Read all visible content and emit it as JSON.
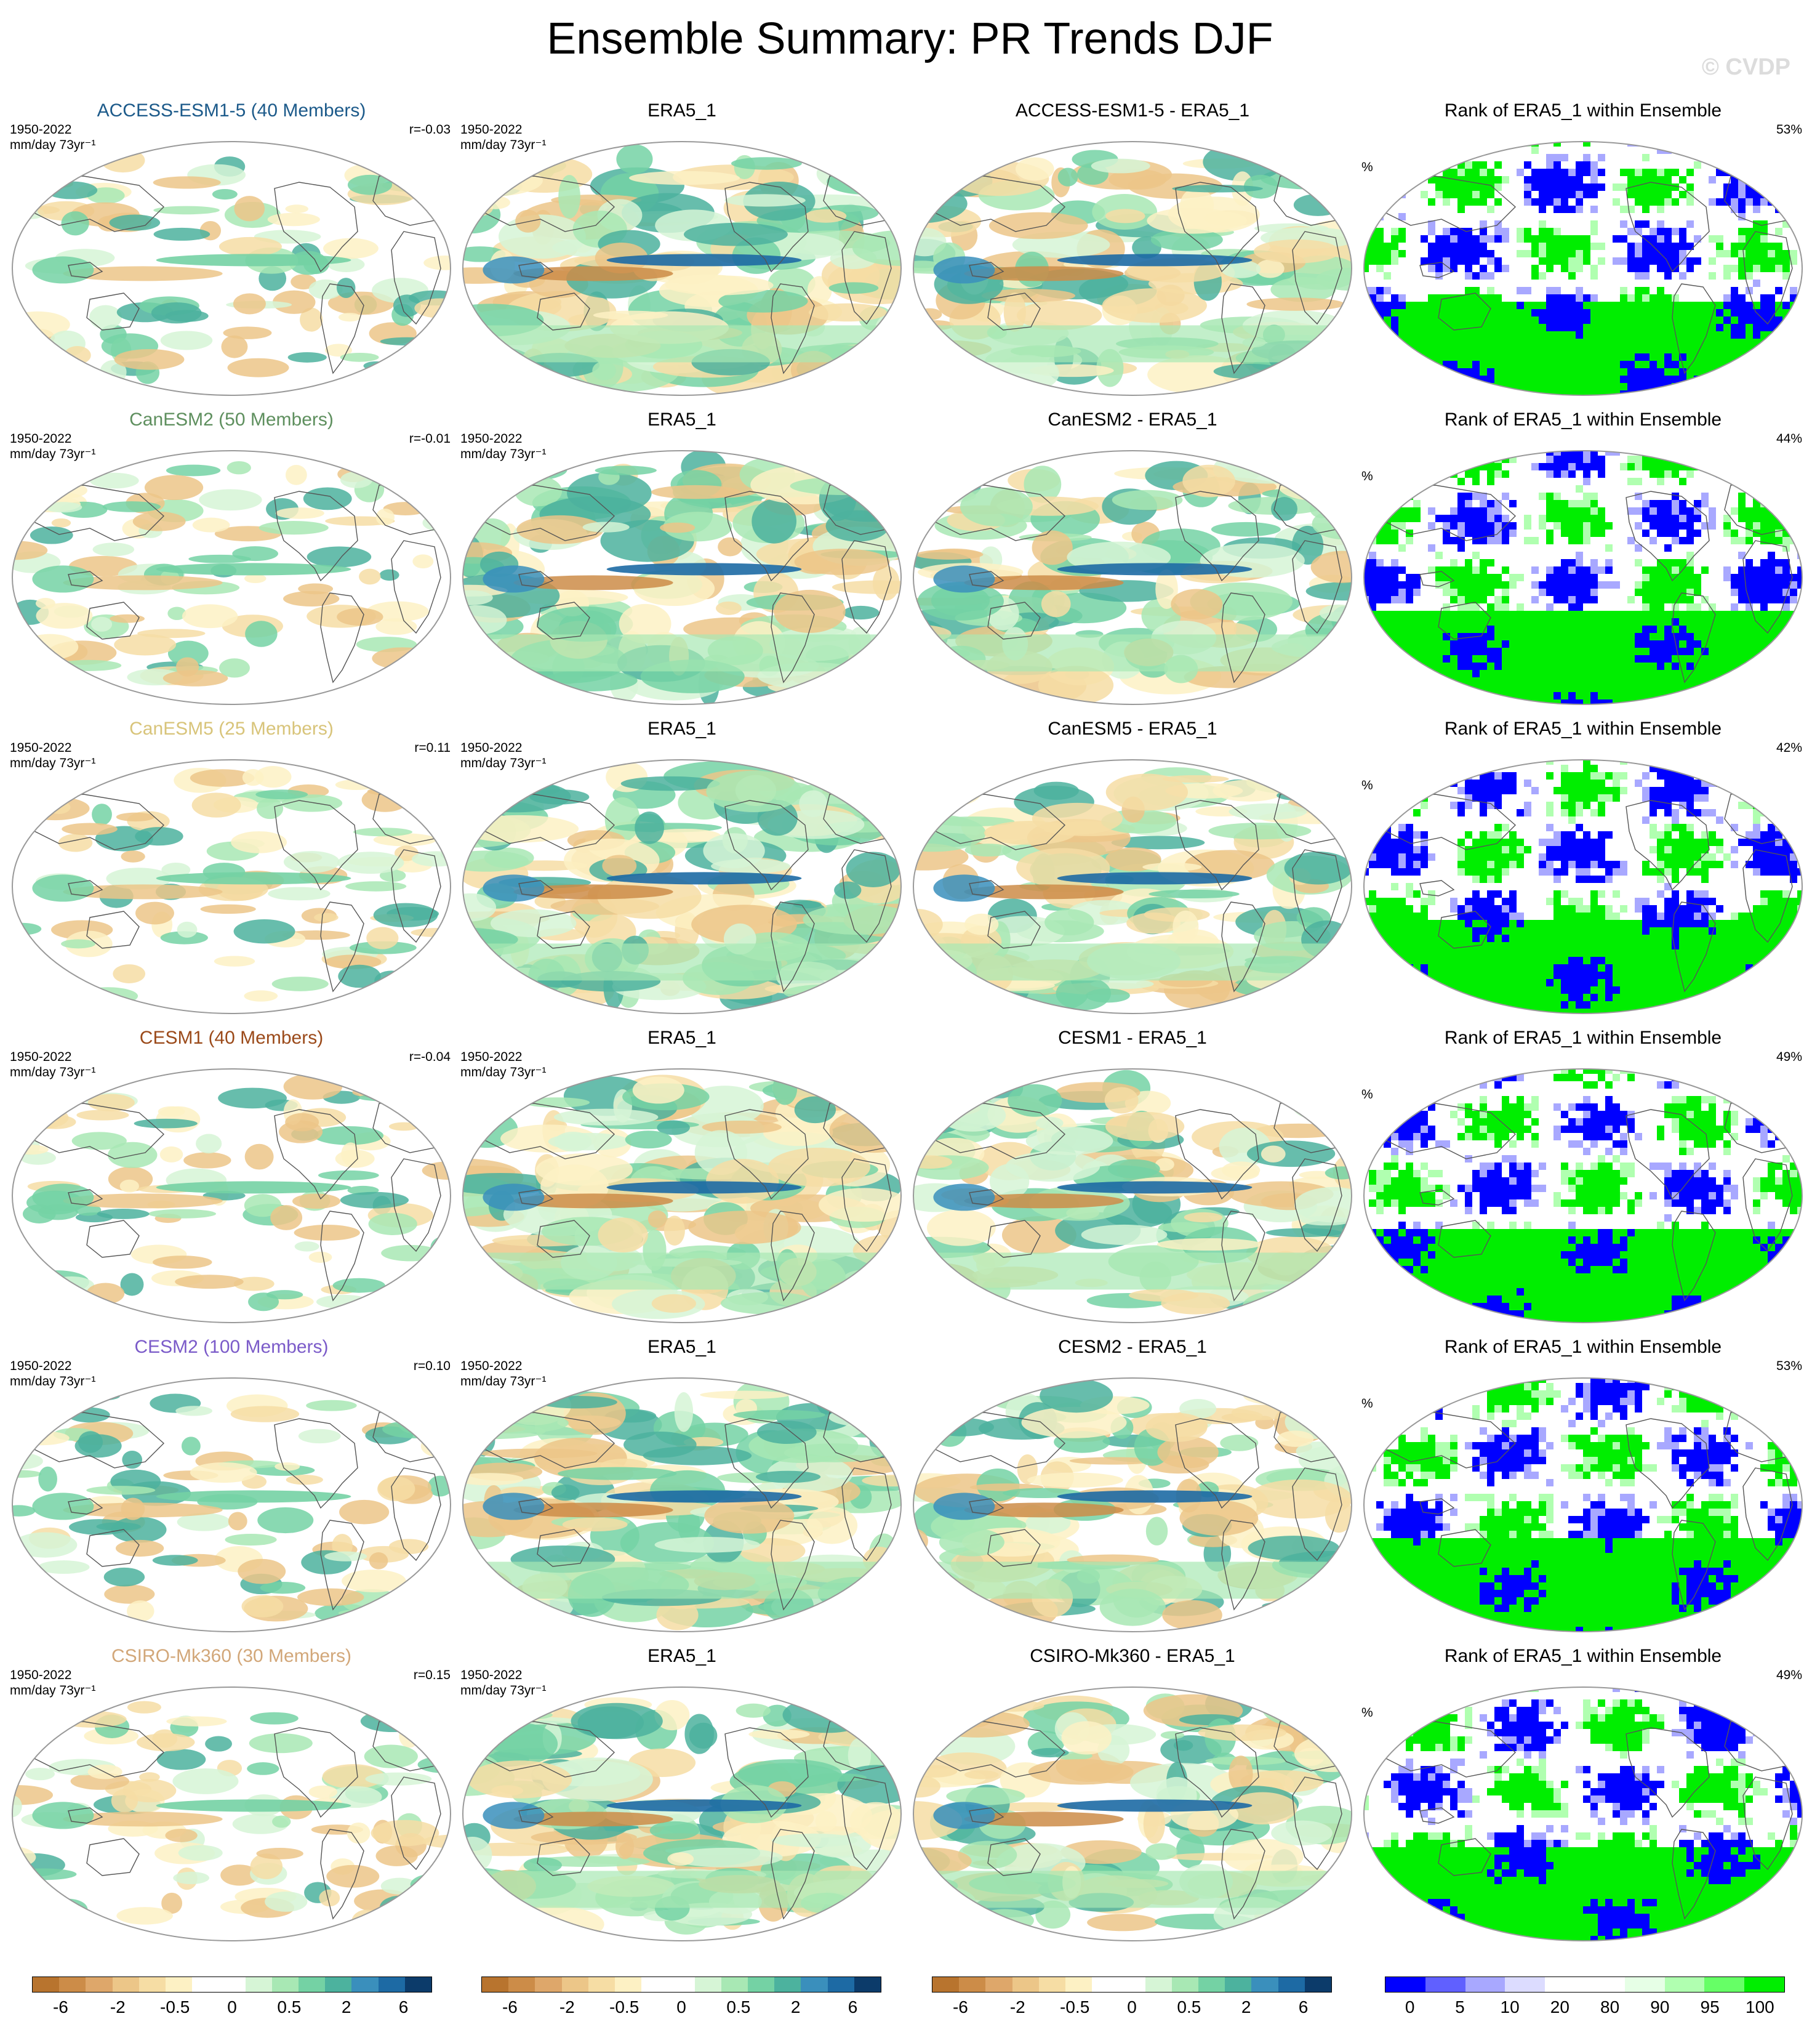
{
  "title": "Ensemble Summary: PR Trends DJF",
  "watermark": "© CVDP",
  "rows": [
    {
      "model": "ACCESS-ESM1-5 (40 Members)",
      "model_color": "#1c5a8a",
      "period": "1950-2022",
      "units": "mm/day 73yr⁻¹",
      "r": "r=-0.03",
      "obs": "ERA5_1",
      "diff": "ACCESS-ESM1-5 - ERA5_1",
      "rank_title": "Rank of ERA5_1 within Ensemble",
      "rank_pct": "53%",
      "rank_unit": "%"
    },
    {
      "model": "CanESM2 (50 Members)",
      "model_color": "#5e8f5e",
      "period": "1950-2022",
      "units": "mm/day 73yr⁻¹",
      "r": "r=-0.01",
      "obs": "ERA5_1",
      "diff": "CanESM2 - ERA5_1",
      "rank_title": "Rank of ERA5_1 within Ensemble",
      "rank_pct": "44%",
      "rank_unit": "%"
    },
    {
      "model": "CanESM5 (25 Members)",
      "model_color": "#d8c47a",
      "period": "1950-2022",
      "units": "mm/day 73yr⁻¹",
      "r": "r=0.11",
      "obs": "ERA5_1",
      "diff": "CanESM5 - ERA5_1",
      "rank_title": "Rank of ERA5_1 within Ensemble",
      "rank_pct": "42%",
      "rank_unit": "%"
    },
    {
      "model": "CESM1 (40 Members)",
      "model_color": "#9b4a1a",
      "period": "1950-2022",
      "units": "mm/day 73yr⁻¹",
      "r": "r=-0.04",
      "obs": "ERA5_1",
      "diff": "CESM1 - ERA5_1",
      "rank_title": "Rank of ERA5_1 within Ensemble",
      "rank_pct": "49%",
      "rank_unit": "%"
    },
    {
      "model": "CESM2 (100 Members)",
      "model_color": "#7b5bc9",
      "period": "1950-2022",
      "units": "mm/day 73yr⁻¹",
      "r": "r=0.10",
      "obs": "ERA5_1",
      "diff": "CESM2 - ERA5_1",
      "rank_title": "Rank of ERA5_1 within Ensemble",
      "rank_pct": "53%",
      "rank_unit": "%"
    },
    {
      "model": "CSIRO-Mk360 (30 Members)",
      "model_color": "#d2a779",
      "period": "1950-2022",
      "units": "mm/day 73yr⁻¹",
      "r": "r=0.15",
      "obs": "ERA5_1",
      "diff": "CSIRO-Mk360 - ERA5_1",
      "rank_title": "Rank of ERA5_1 within Ensemble",
      "rank_pct": "49%",
      "rank_unit": "%"
    }
  ],
  "colorbars": [
    {
      "colors": [
        "#b8742e",
        "#cc8c48",
        "#dea76a",
        "#ecc688",
        "#f6dda4",
        "#fdf1c4",
        "#ffffff",
        "#ffffff",
        "#d6f5d6",
        "#a8e8b4",
        "#74d2a4",
        "#4cb29e",
        "#3a8fbc",
        "#1d6aa4",
        "#0c3b6a"
      ],
      "labels": [
        "-6",
        "-2",
        "-0.5",
        "0",
        "0.5",
        "2",
        "6"
      ]
    },
    {
      "colors": [
        "#b8742e",
        "#cc8c48",
        "#dea76a",
        "#ecc688",
        "#f6dda4",
        "#fdf1c4",
        "#ffffff",
        "#ffffff",
        "#d6f5d6",
        "#a8e8b4",
        "#74d2a4",
        "#4cb29e",
        "#3a8fbc",
        "#1d6aa4",
        "#0c3b6a"
      ],
      "labels": [
        "-6",
        "-2",
        "-0.5",
        "0",
        "0.5",
        "2",
        "6"
      ]
    },
    {
      "colors": [
        "#b8742e",
        "#cc8c48",
        "#dea76a",
        "#ecc688",
        "#f6dda4",
        "#fdf1c4",
        "#ffffff",
        "#ffffff",
        "#d6f5d6",
        "#a8e8b4",
        "#74d2a4",
        "#4cb29e",
        "#3a8fbc",
        "#1d6aa4",
        "#0c3b6a"
      ],
      "labels": [
        "-6",
        "-2",
        "-0.5",
        "0",
        "0.5",
        "2",
        "6"
      ]
    },
    {
      "colors": [
        "#0000ff",
        "#6060ff",
        "#a8a8ff",
        "#dcdcff",
        "#ffffff",
        "#ffffff",
        "#e6ffe6",
        "#b0ffb0",
        "#66ff66",
        "#00ee00"
      ],
      "labels": [
        "0",
        "5",
        "10",
        "20",
        "80",
        "90",
        "95",
        "100"
      ]
    }
  ]
}
